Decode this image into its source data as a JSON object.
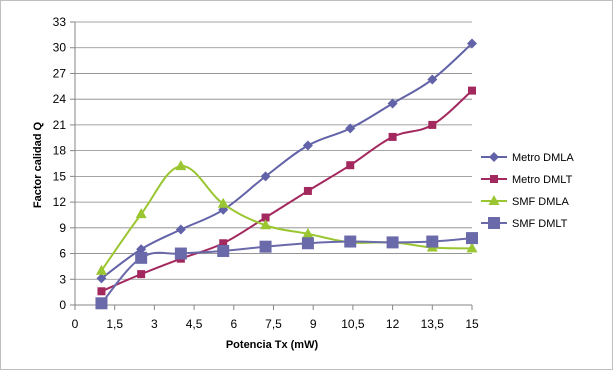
{
  "chart_data": {
    "type": "line",
    "xlabel": "Potencia Tx (mW)",
    "ylabel": "Factor calidad Q",
    "xlim": [
      0,
      15
    ],
    "ylim": [
      0,
      33
    ],
    "x_ticks": [
      "0",
      "1,5",
      "3",
      "4,5",
      "6",
      "7,5",
      "9",
      "10,5",
      "12",
      "13,5",
      "15"
    ],
    "y_ticks": [
      "0",
      "3",
      "6",
      "9",
      "12",
      "15",
      "18",
      "21",
      "24",
      "27",
      "30",
      "33"
    ],
    "grid": "horizontal",
    "legend_position": "right",
    "series": [
      {
        "name": "Metro DMLA",
        "color": "#6262a8",
        "marker": "diamond",
        "points": [
          [
            1,
            3.1
          ],
          [
            2.5,
            6.5
          ],
          [
            4,
            8.8
          ],
          [
            5.6,
            11.1
          ],
          [
            7.2,
            15.0
          ],
          [
            8.8,
            18.6
          ],
          [
            10.4,
            20.6
          ],
          [
            12,
            23.5
          ],
          [
            13.5,
            26.3
          ],
          [
            15,
            30.5
          ]
        ]
      },
      {
        "name": "Metro DMLT",
        "color": "#a3285e",
        "marker": "square",
        "points": [
          [
            1,
            1.6
          ],
          [
            2.5,
            3.6
          ],
          [
            4,
            5.4
          ],
          [
            5.6,
            7.2
          ],
          [
            7.2,
            10.2
          ],
          [
            8.8,
            13.3
          ],
          [
            10.4,
            16.3
          ],
          [
            12,
            19.6
          ],
          [
            13.5,
            21.0
          ],
          [
            15,
            25.0
          ]
        ]
      },
      {
        "name": "SMF DMLA",
        "color": "#9ac631",
        "marker": "triangle",
        "points": [
          [
            1,
            4.0
          ],
          [
            2.5,
            10.6
          ],
          [
            4,
            16.2
          ],
          [
            5.6,
            11.8
          ],
          [
            7.2,
            9.3
          ],
          [
            8.8,
            8.3
          ],
          [
            10.4,
            7.3
          ],
          [
            12,
            7.3
          ],
          [
            13.5,
            6.7
          ],
          [
            15,
            6.6
          ]
        ]
      },
      {
        "name": "SMF DMLT",
        "color": "#6a6aaa",
        "marker": "square-large",
        "points": [
          [
            1,
            0.2
          ],
          [
            2.5,
            5.5
          ],
          [
            4,
            6.0
          ],
          [
            5.6,
            6.3
          ],
          [
            7.2,
            6.8
          ],
          [
            8.8,
            7.2
          ],
          [
            10.4,
            7.4
          ],
          [
            12,
            7.3
          ],
          [
            13.5,
            7.4
          ],
          [
            15,
            7.8
          ]
        ]
      }
    ]
  }
}
